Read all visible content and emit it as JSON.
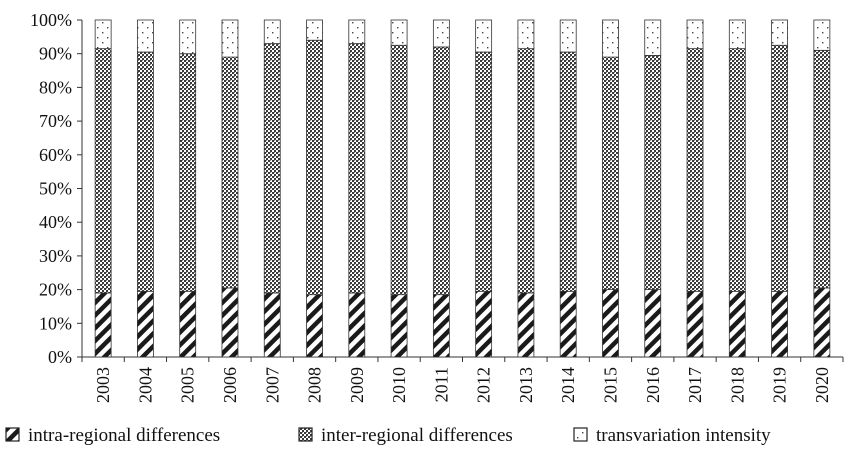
{
  "chart_data": {
    "type": "bar",
    "stacked": true,
    "percent": true,
    "categories": [
      "2003",
      "2004",
      "2005",
      "2006",
      "2007",
      "2008",
      "2009",
      "2010",
      "2011",
      "2012",
      "2013",
      "2014",
      "2015",
      "2016",
      "2017",
      "2018",
      "2019",
      "2020"
    ],
    "series": [
      {
        "name": "intra-regional differences",
        "pattern": "diagonal-hatch",
        "color": "#1a1a1a",
        "values": [
          19.0,
          19.5,
          19.5,
          20.5,
          19.0,
          18.5,
          19.0,
          18.5,
          18.5,
          19.5,
          19.0,
          19.5,
          20.0,
          20.0,
          19.5,
          19.5,
          19.5,
          20.5
        ]
      },
      {
        "name": "inter-regional differences",
        "pattern": "crosshatch",
        "color": "#4a4a4a",
        "values": [
          72.5,
          71.0,
          70.5,
          68.5,
          74.0,
          75.5,
          74.0,
          74.0,
          73.5,
          71.0,
          72.5,
          71.0,
          69.0,
          69.5,
          72.0,
          72.0,
          73.0,
          70.5
        ]
      },
      {
        "name": "transvariation intensity",
        "pattern": "dots",
        "color": "#555555",
        "values": [
          8.5,
          9.5,
          10.0,
          11.0,
          7.0,
          6.0,
          7.0,
          7.5,
          8.0,
          9.5,
          8.5,
          9.5,
          11.0,
          10.5,
          8.5,
          8.5,
          7.5,
          9.0
        ]
      }
    ],
    "y_ticks": [
      "0%",
      "10%",
      "20%",
      "30%",
      "40%",
      "50%",
      "60%",
      "70%",
      "80%",
      "90%",
      "100%"
    ],
    "ylim": [
      0,
      100
    ],
    "title": "",
    "xlabel": "",
    "ylabel": "",
    "grid": false,
    "legend_position": "bottom"
  }
}
